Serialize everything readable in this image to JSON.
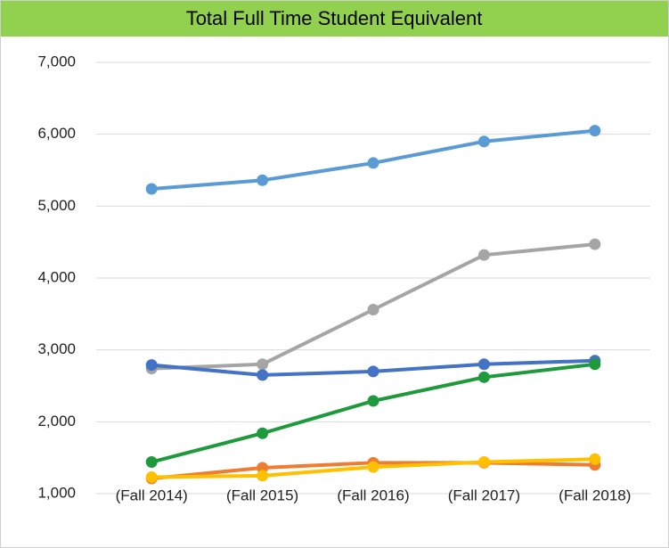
{
  "chart_data": {
    "type": "line",
    "title": "Total Full Time Student Equivalent",
    "categories": [
      "(Fall 2014)",
      "(Fall 2015)",
      "(Fall 2016)",
      "(Fall 2017)",
      "(Fall 2018)"
    ],
    "series": [
      {
        "color": "#5b9bd5",
        "values": [
          5240,
          5360,
          5600,
          5900,
          6050
        ]
      },
      {
        "color": "#a5a5a5",
        "values": [
          2740,
          2800,
          3560,
          4320,
          4470
        ]
      },
      {
        "color": "#4472c4",
        "values": [
          2790,
          2650,
          2700,
          2800,
          2850
        ]
      },
      {
        "color": "#1e9a3c",
        "values": [
          1440,
          1840,
          2290,
          2620,
          2800
        ]
      },
      {
        "color": "#ed7d31",
        "values": [
          1210,
          1360,
          1430,
          1430,
          1400
        ]
      },
      {
        "color": "#ffc000",
        "values": [
          1230,
          1250,
          1370,
          1440,
          1480
        ]
      }
    ],
    "ylim": [
      1000,
      7000
    ],
    "yticks": [
      {
        "value": 1000,
        "label": "1,000"
      },
      {
        "value": 2000,
        "label": "2,000"
      },
      {
        "value": 3000,
        "label": "3,000"
      },
      {
        "value": 4000,
        "label": "4,000"
      },
      {
        "value": 5000,
        "label": "5,000"
      },
      {
        "value": 6000,
        "label": "6,000"
      },
      {
        "value": 7000,
        "label": "7,000"
      }
    ],
    "grid": true
  }
}
